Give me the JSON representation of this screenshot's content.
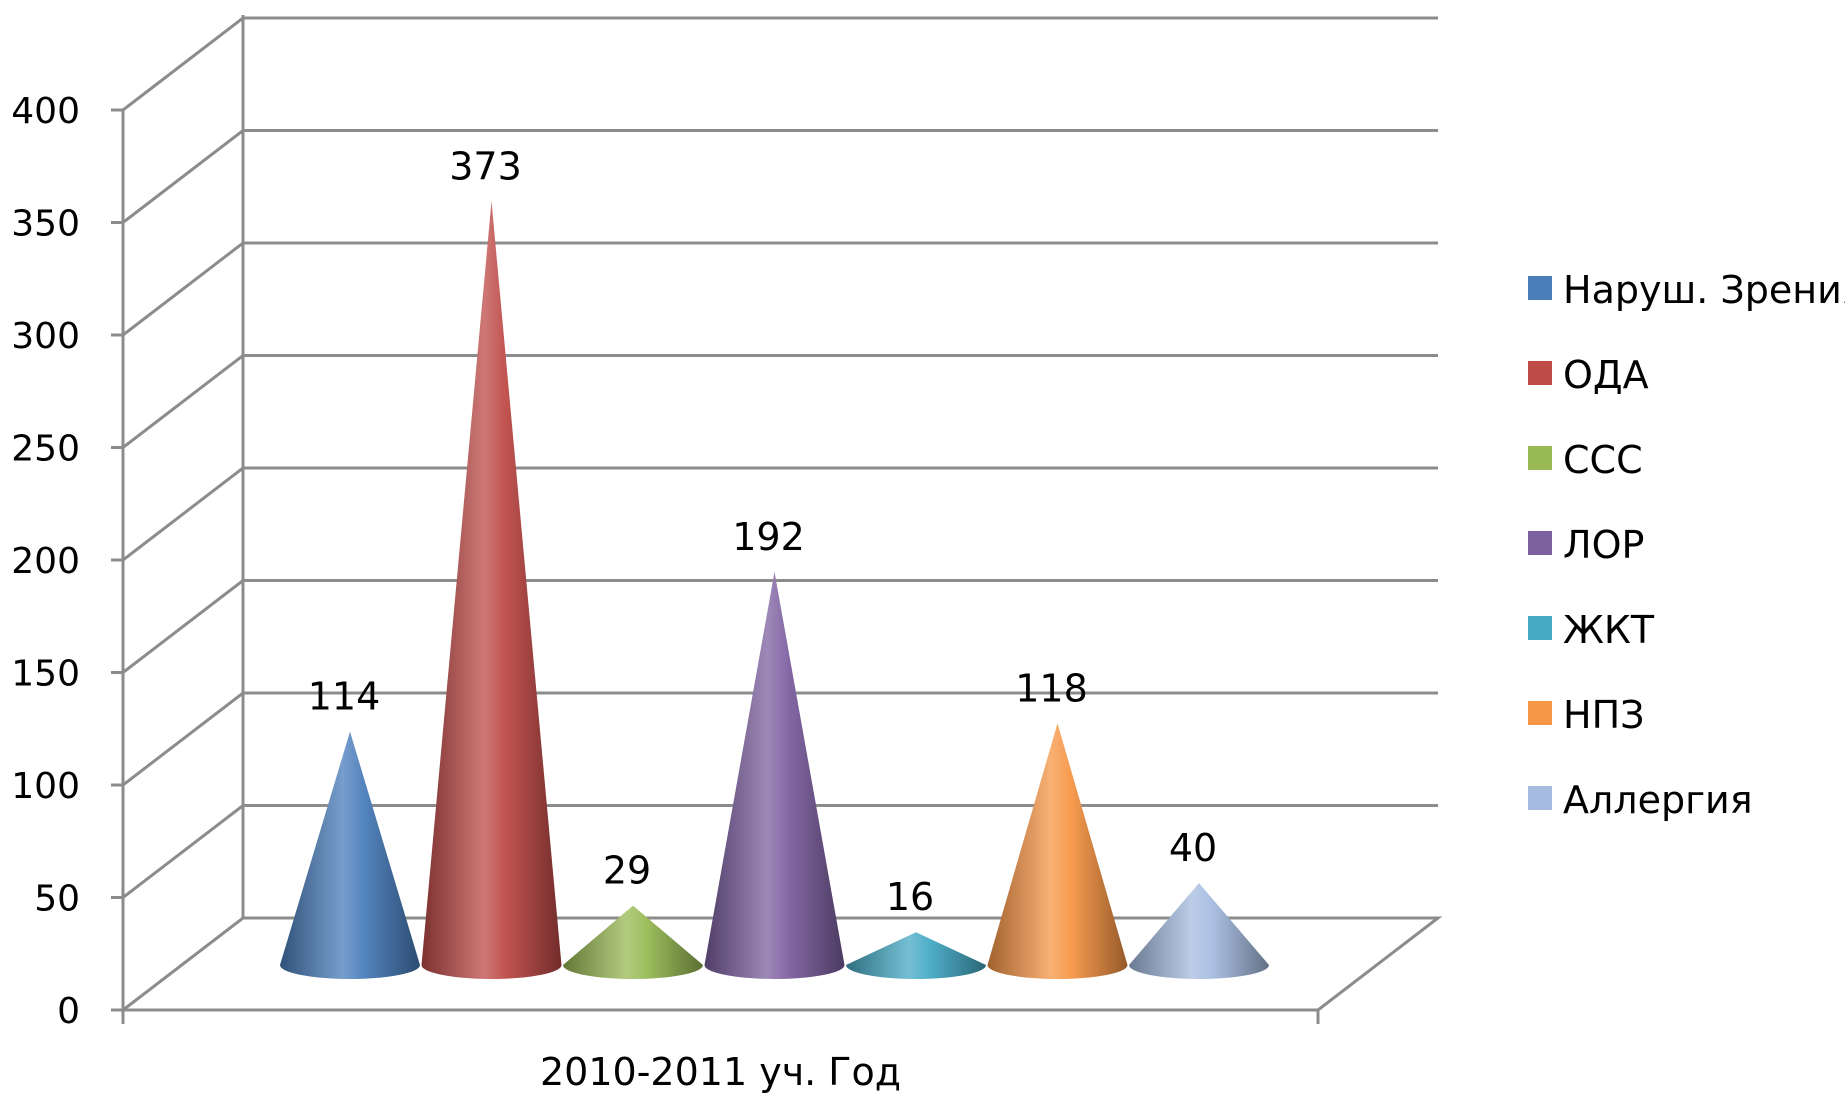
{
  "chart_data": {
    "type": "bar",
    "style": "3d-cone",
    "categories": [
      "2010-2011 уч. Год"
    ],
    "series": [
      {
        "name": "Наруш. Зрения",
        "values": [
          114
        ],
        "color": "#4a7ebb"
      },
      {
        "name": "ОДА",
        "values": [
          373
        ],
        "color": "#be4b48"
      },
      {
        "name": "ССС",
        "values": [
          29
        ],
        "color": "#98b954"
      },
      {
        "name": "ЛОР",
        "values": [
          192
        ],
        "color": "#7d60a0"
      },
      {
        "name": "ЖКТ",
        "values": [
          16
        ],
        "color": "#46aac5"
      },
      {
        "name": "НПЗ",
        "values": [
          118
        ],
        "color": "#f79646"
      },
      {
        "name": "Аллергия",
        "values": [
          40
        ],
        "color": "#a5bce0"
      }
    ],
    "y_ticks": [
      "0",
      "50",
      "100",
      "150",
      "200",
      "250",
      "300",
      "350",
      "400"
    ],
    "ylim": [
      0,
      400
    ],
    "grid": true,
    "legend": "right",
    "data_labels": true
  }
}
